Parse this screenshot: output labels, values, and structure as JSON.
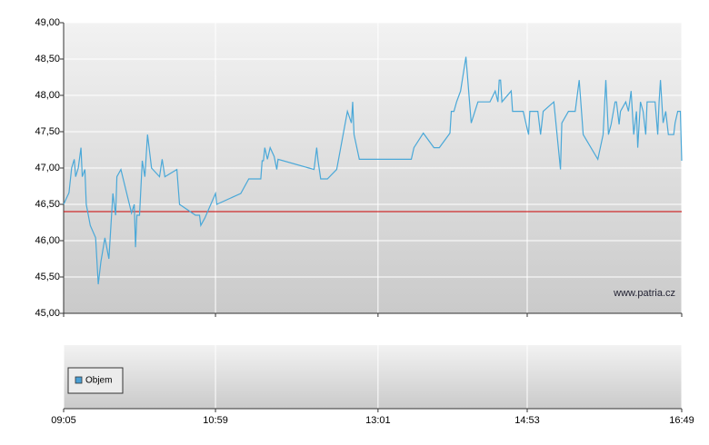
{
  "chart_data": {
    "type": "line",
    "x": [
      545,
      549,
      551,
      553,
      554,
      556,
      558,
      559,
      561,
      562,
      565,
      569,
      571,
      573,
      576,
      579,
      582,
      584,
      585,
      588,
      596,
      598,
      599,
      600,
      602,
      604,
      606,
      608,
      611,
      617,
      619,
      621,
      630,
      632,
      644,
      647,
      648,
      651,
      659,
      660,
      678,
      684,
      693,
      694,
      695,
      696,
      698,
      700,
      703,
      705,
      706,
      733,
      735,
      736,
      738,
      743,
      750,
      758,
      761,
      762,
      763,
      767,
      806,
      808,
      815,
      823,
      827,
      835,
      836,
      838,
      840,
      843,
      847,
      851,
      856,
      865,
      869,
      871,
      872,
      873,
      874,
      881,
      882,
      890,
      894,
      895,
      901,
      903,
      905,
      913,
      918,
      919,
      924,
      929,
      932,
      935,
      946,
      950,
      952,
      954,
      956,
      959,
      960,
      962,
      963,
      967,
      969,
      971,
      973,
      975,
      976,
      978,
      980,
      982,
      983,
      989,
      991,
      992,
      993,
      995,
      997,
      999,
      1003,
      1004,
      1006,
      1008,
      1009
    ],
    "values": [
      46.5,
      46.66,
      47.0,
      47.12,
      46.88,
      47.0,
      47.28,
      46.88,
      46.98,
      46.5,
      46.21,
      46.04,
      45.4,
      45.71,
      46.04,
      45.75,
      46.65,
      46.35,
      46.88,
      46.98,
      46.38,
      46.5,
      45.91,
      46.35,
      46.35,
      47.1,
      46.88,
      47.46,
      47.0,
      46.88,
      47.12,
      46.88,
      46.98,
      46.5,
      46.35,
      46.35,
      46.21,
      46.31,
      46.65,
      46.5,
      46.65,
      46.85,
      46.85,
      47.1,
      47.1,
      47.28,
      47.12,
      47.28,
      47.16,
      46.98,
      47.12,
      46.98,
      47.28,
      47.1,
      46.85,
      46.85,
      46.98,
      47.78,
      47.62,
      47.91,
      47.46,
      47.12,
      47.12,
      47.28,
      47.48,
      47.28,
      47.28,
      47.48,
      47.78,
      47.78,
      47.91,
      48.06,
      48.53,
      47.62,
      47.91,
      47.91,
      48.06,
      47.91,
      48.21,
      48.21,
      47.91,
      48.06,
      47.78,
      47.78,
      47.46,
      47.78,
      47.78,
      47.46,
      47.78,
      47.91,
      46.98,
      47.62,
      47.78,
      47.78,
      48.21,
      47.46,
      47.12,
      47.46,
      48.21,
      47.46,
      47.6,
      47.91,
      47.91,
      47.6,
      47.78,
      47.91,
      47.78,
      48.06,
      47.46,
      47.78,
      47.28,
      47.91,
      47.78,
      47.46,
      47.91,
      47.91,
      47.46,
      47.91,
      48.21,
      47.62,
      47.78,
      47.46,
      47.46,
      47.62,
      47.78,
      47.78,
      47.1
    ],
    "color": "#4aa8d8",
    "reference_line": 46.4,
    "reference_color": "#cc0000",
    "xlim": [
      545,
      1009
    ],
    "xticks": [
      {
        "value": 545,
        "label": "09:05"
      },
      {
        "value": 659,
        "label": "10:59"
      },
      {
        "value": 781,
        "label": "13:01"
      },
      {
        "value": 893,
        "label": "14:53"
      },
      {
        "value": 1009,
        "label": "16:49"
      }
    ],
    "ylim": [
      45,
      49
    ],
    "yticks": [
      {
        "value": 45,
        "label": "45,00"
      },
      {
        "value": 45.5,
        "label": "45,50"
      },
      {
        "value": 46,
        "label": "46,00"
      },
      {
        "value": 46.5,
        "label": "46,50"
      },
      {
        "value": 47,
        "label": "47,00"
      },
      {
        "value": 47.5,
        "label": "47,50"
      },
      {
        "value": 48,
        "label": "48,00"
      },
      {
        "value": 48.5,
        "label": "48,50"
      },
      {
        "value": 49,
        "label": "49,00"
      }
    ],
    "grid": true,
    "watermark": "www.patria.cz",
    "legend_entries": [
      "Objem"
    ],
    "legend_color": "#4a9fd4"
  }
}
